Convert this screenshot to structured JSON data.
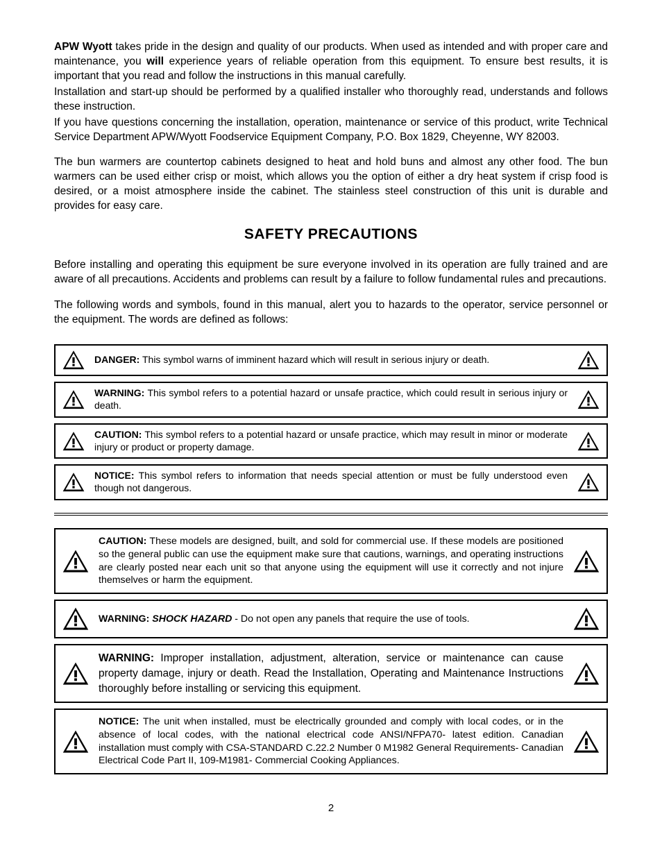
{
  "intro": {
    "brand": "APW Wyott",
    "p1_a": " takes pride in the design and quality of our products. When used as intended and with proper care and maintenance, you ",
    "p1_bold": "will",
    "p1_b": " experience years of reliable operation from this equipment. To ensure best results, it is important that you read and follow the instructions in this manual carefully.",
    "p2": "Installation and start-up should be performed by a qualified installer who thoroughly read, understands and follows these instruction.",
    "p3": "If you have questions concerning the installation, operation, maintenance or service of this product, write Technical Service Department APW/Wyott Foodservice Equipment Company, P.O. Box 1829, Cheyenne, WY 82003.",
    "p4": "The bun warmers are countertop cabinets designed to heat and hold buns and almost any other food. The bun warmers can be used either crisp or moist, which allows you the option of either a dry heat system if crisp food is desired, or a moist atmosphere inside the cabinet. The stainless steel construction of this unit is durable and provides for easy care."
  },
  "section_title": "SAFETY PRECAUTIONS",
  "safety_intro": {
    "p1": "Before installing and operating this equipment be sure everyone involved in its operation are fully trained and are aware of all precautions. Accidents and problems can result by a failure to follow fundamental rules and precautions.",
    "p2": "The following words and symbols, found in this manual, alert you to hazards to the operator, service personnel or the equipment. The words are defined as follows:"
  },
  "definitions": [
    {
      "label": "DANGER:",
      "text": " This symbol warns of imminent hazard which will result in serious injury or death."
    },
    {
      "label": "WARNING:",
      "text": " This symbol refers to a potential hazard or unsafe practice, which could result in serious injury or death."
    },
    {
      "label": "CAUTION:",
      "text": " This symbol refers to a potential hazard or unsafe practice, which may result in minor or moderate injury or product or property damage."
    },
    {
      "label": "NOTICE:",
      "text": " This symbol refers to information that needs special attention or must be fully understood even though not dangerous."
    }
  ],
  "notices": [
    {
      "label": "CAUTION:",
      "size": "normal",
      "text": " These models are designed, built, and sold for commercial use. If these models are positioned so the general public can use the equipment make sure that cautions, warnings, and operating instructions are clearly posted near each unit so that anyone using the equipment will use it correctly and not injure themselves or harm the equipment."
    },
    {
      "label": "WARNING:",
      "size": "normal",
      "italic_lead": " SHOCK HAZARD",
      "text": " -  Do not open any panels that require the use of tools."
    },
    {
      "label": "WARNING:",
      "size": "larger",
      "text": " Improper installation, adjustment, alteration, service or maintenance can cause property damage, injury or death. Read the Installation, Operating and Maintenance Instructions thoroughly before installing or servicing this equipment."
    },
    {
      "label": "NOTICE:",
      "size": "normal",
      "text": " The unit when installed, must be electrically grounded and comply with local codes, or in the absence of local codes, with the national electrical code ANSI/NFPA70- latest edition. Canadian installation must comply with CSA-STANDARD C.22.2 Number 0 M1982 General Requirements- Canadian Electrical Code Part II, 109-M1981- Commercial Cooking Appliances."
    }
  ],
  "page_number": "2",
  "colors": {
    "text": "#000000",
    "background": "#ffffff",
    "border": "#000000"
  }
}
